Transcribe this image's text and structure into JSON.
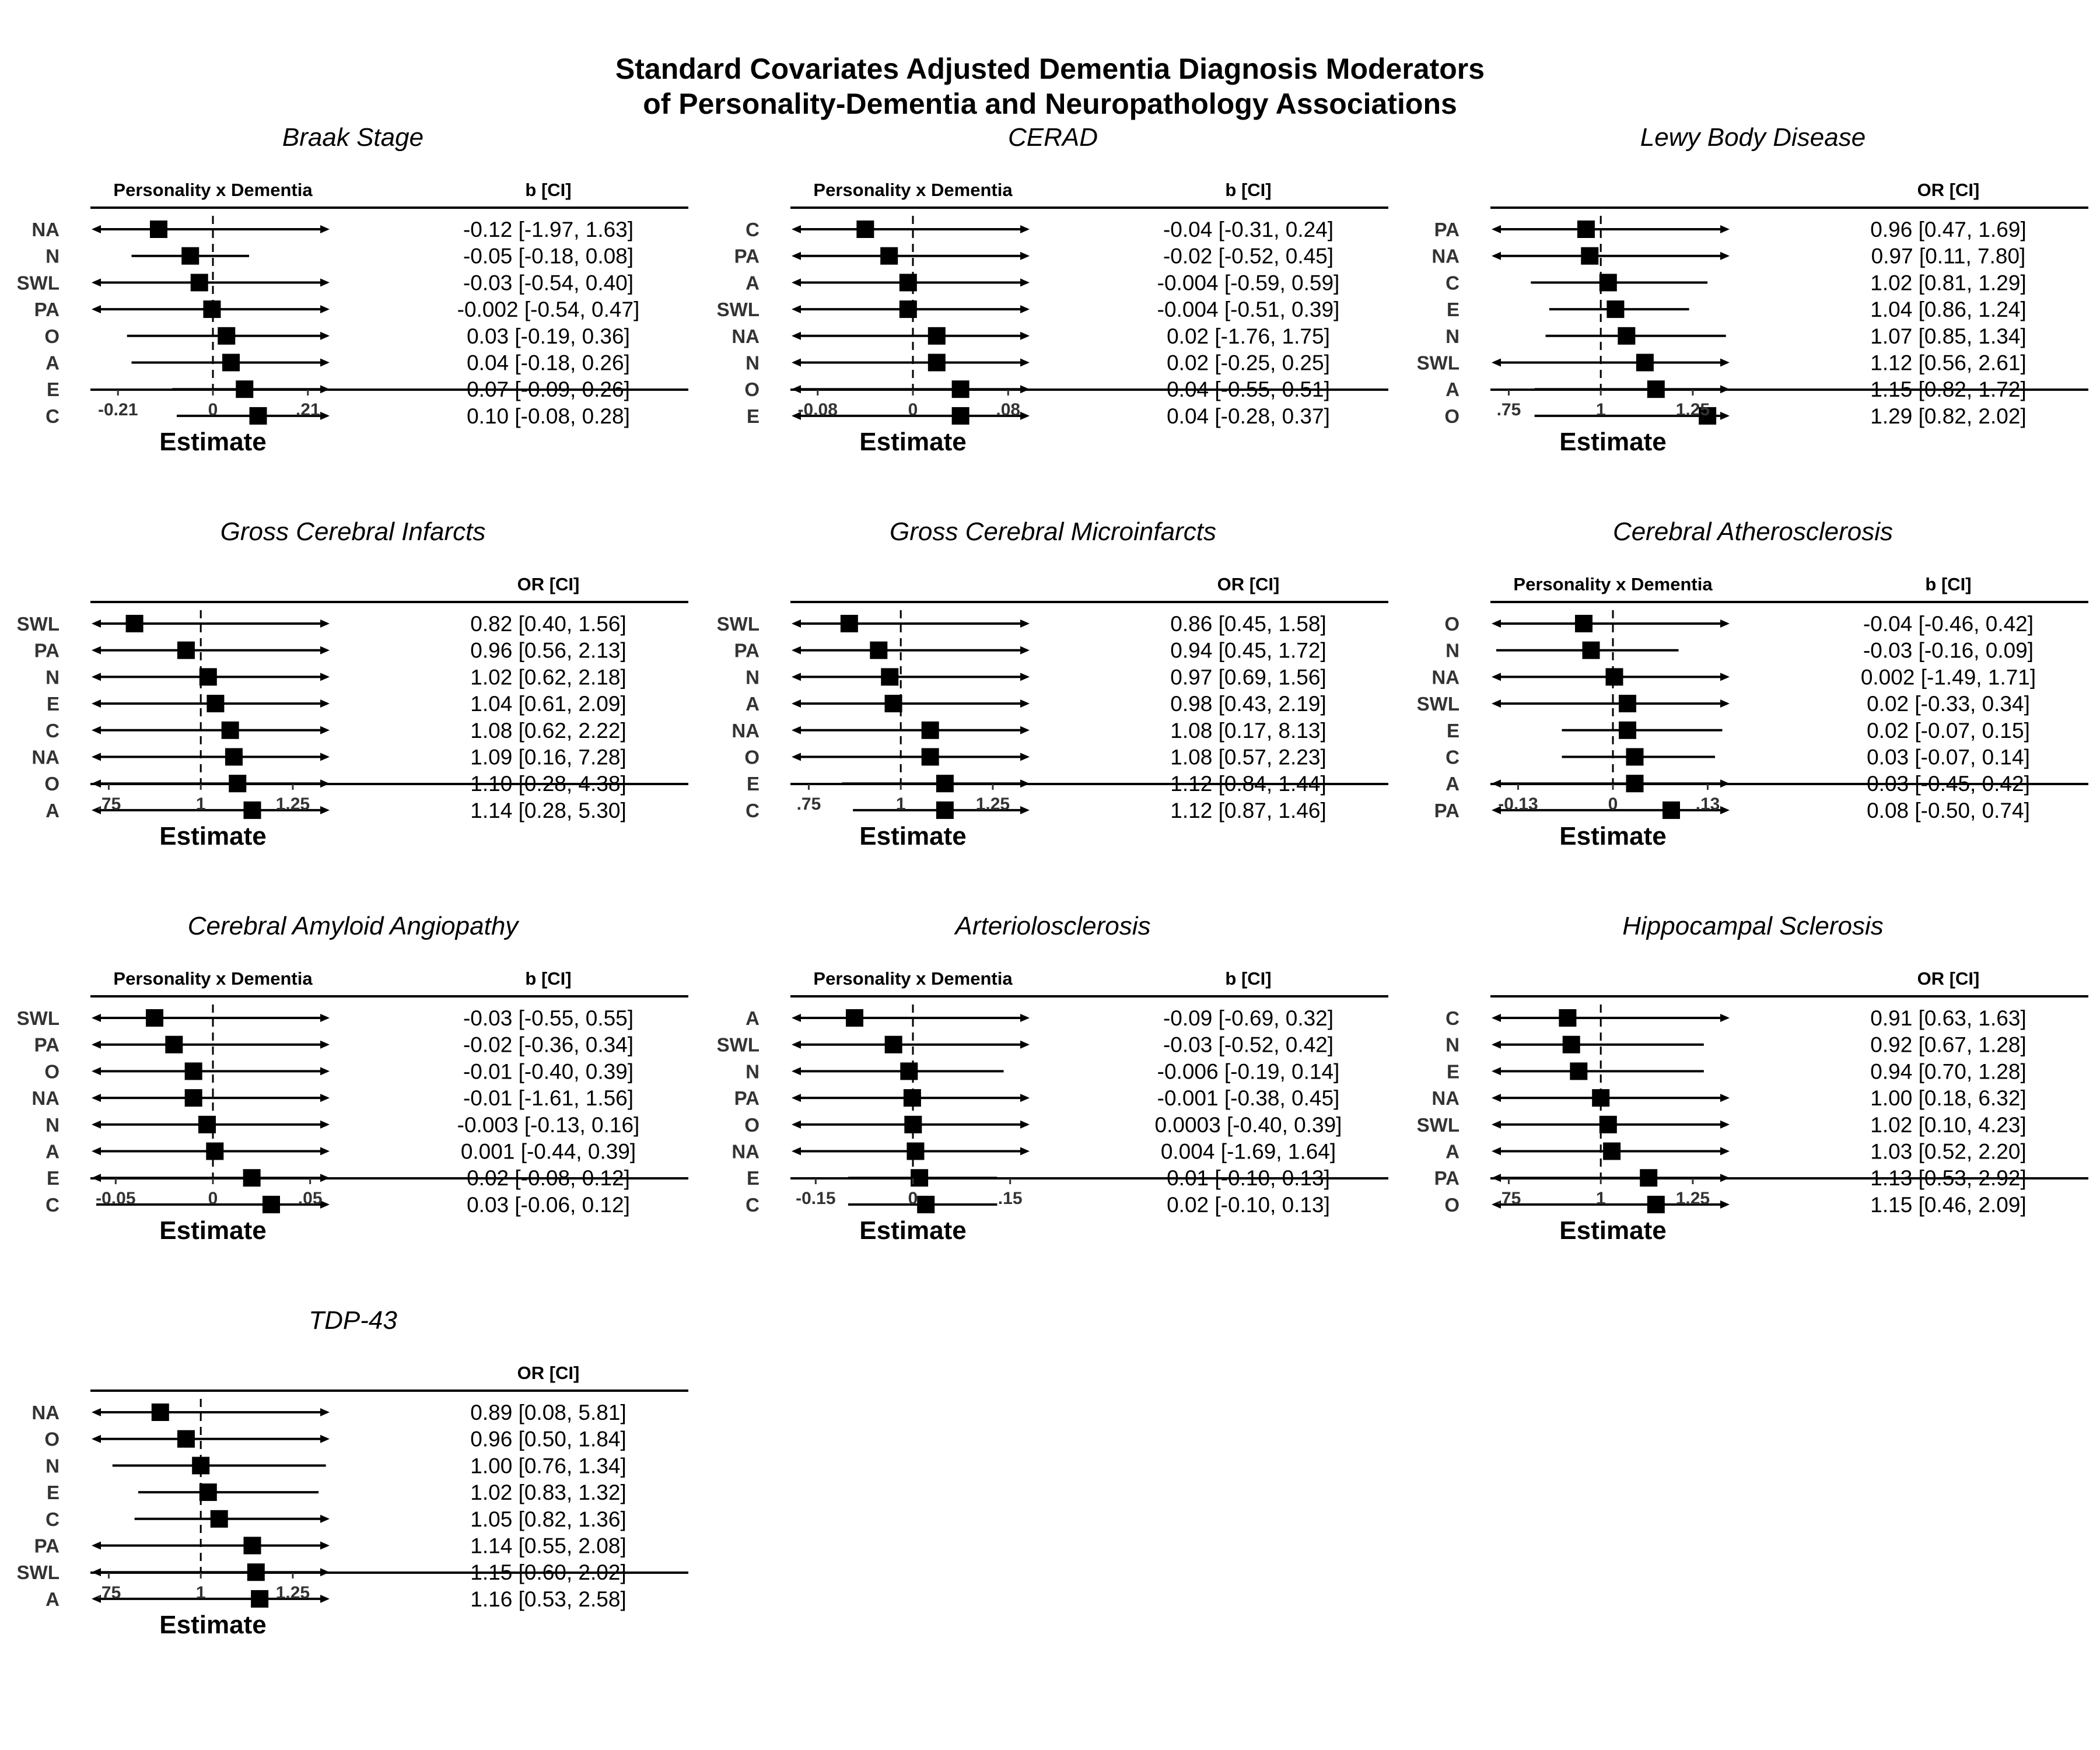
{
  "title": [
    "Standard Covariates Adjusted Dementia Diagnosis Moderators",
    "of Personality-Dementia and Neuropathology Associations"
  ],
  "chart_data": [
    {
      "type": "forest",
      "title": "Braak Stage",
      "column_left": "Personality x Dementia",
      "column_right": "b [CI]",
      "xlabel": "Estimate",
      "ref": 0,
      "ticks": [
        {
          "v": -0.21,
          "label": "-0.21"
        },
        {
          "v": 0,
          "label": "0"
        },
        {
          "v": 0.21,
          "label": ".21"
        }
      ],
      "xlim": [
        -0.258,
        0.258
      ],
      "rows": [
        {
          "label": "NA",
          "est": -0.12,
          "lo": -1.97,
          "hi": 1.63,
          "text": "-0.12 [-1.97, 1.63]"
        },
        {
          "label": "N",
          "est": -0.05,
          "lo": -0.18,
          "hi": 0.08,
          "text": "-0.05 [-0.18, 0.08]"
        },
        {
          "label": "SWL",
          "est": -0.03,
          "lo": -0.54,
          "hi": 0.4,
          "text": "-0.03 [-0.54, 0.40]"
        },
        {
          "label": "PA",
          "est": -0.002,
          "lo": -0.54,
          "hi": 0.47,
          "text": "-0.002 [-0.54, 0.47]"
        },
        {
          "label": "O",
          "est": 0.03,
          "lo": -0.19,
          "hi": 0.36,
          "text": "0.03 [-0.19, 0.36]"
        },
        {
          "label": "A",
          "est": 0.04,
          "lo": -0.18,
          "hi": 0.26,
          "text": "0.04 [-0.18, 0.26]"
        },
        {
          "label": "E",
          "est": 0.07,
          "lo": -0.09,
          "hi": 0.26,
          "text": "0.07 [-0.09, 0.26]"
        },
        {
          "label": "C",
          "est": 0.1,
          "lo": -0.08,
          "hi": 0.28,
          "text": "0.10 [-0.08, 0.28]"
        }
      ]
    },
    {
      "type": "forest",
      "title": "CERAD",
      "column_left": "Personality x Dementia",
      "column_right": "b [CI]",
      "xlabel": "Estimate",
      "ref": 0,
      "ticks": [
        {
          "v": -0.08,
          "label": "-0.08"
        },
        {
          "v": 0,
          "label": "0"
        },
        {
          "v": 0.08,
          "label": ".08"
        }
      ],
      "xlim": [
        -0.098,
        0.098
      ],
      "rows": [
        {
          "label": "C",
          "est": -0.04,
          "lo": -0.31,
          "hi": 0.24,
          "text": "-0.04 [-0.31, 0.24]"
        },
        {
          "label": "PA",
          "est": -0.02,
          "lo": -0.52,
          "hi": 0.45,
          "text": "-0.02 [-0.52, 0.45]"
        },
        {
          "label": "A",
          "est": -0.004,
          "lo": -0.59,
          "hi": 0.59,
          "text": "-0.004 [-0.59, 0.59]"
        },
        {
          "label": "SWL",
          "est": -0.004,
          "lo": -0.51,
          "hi": 0.39,
          "text": "-0.004 [-0.51, 0.39]"
        },
        {
          "label": "NA",
          "est": 0.02,
          "lo": -1.76,
          "hi": 1.75,
          "text": "0.02 [-1.76, 1.75]"
        },
        {
          "label": "N",
          "est": 0.02,
          "lo": -0.25,
          "hi": 0.25,
          "text": "0.02 [-0.25, 0.25]"
        },
        {
          "label": "O",
          "est": 0.04,
          "lo": -0.55,
          "hi": 0.51,
          "text": "0.04 [-0.55, 0.51]"
        },
        {
          "label": "E",
          "est": 0.04,
          "lo": -0.28,
          "hi": 0.37,
          "text": "0.04 [-0.28, 0.37]"
        }
      ]
    },
    {
      "type": "forest",
      "title": "Lewy Body Disease",
      "column_left": "",
      "column_right": "OR [CI]",
      "xlabel": "Estimate",
      "ref": 1,
      "ticks": [
        {
          "v": 0.75,
          "label": ".75"
        },
        {
          "v": 1,
          "label": "1"
        },
        {
          "v": 1.25,
          "label": "1.25"
        }
      ],
      "xlim": [
        0.716,
        1.35
      ],
      "rows": [
        {
          "label": "PA",
          "est": 0.96,
          "lo": 0.47,
          "hi": 1.69,
          "text": "0.96 [0.47, 1.69]"
        },
        {
          "label": "NA",
          "est": 0.97,
          "lo": 0.11,
          "hi": 7.8,
          "text": "0.97 [0.11, 7.80]"
        },
        {
          "label": "C",
          "est": 1.02,
          "lo": 0.81,
          "hi": 1.29,
          "text": "1.02 [0.81, 1.29]"
        },
        {
          "label": "E",
          "est": 1.04,
          "lo": 0.86,
          "hi": 1.24,
          "text": "1.04 [0.86, 1.24]"
        },
        {
          "label": "N",
          "est": 1.07,
          "lo": 0.85,
          "hi": 1.34,
          "text": "1.07 [0.85, 1.34]"
        },
        {
          "label": "SWL",
          "est": 1.12,
          "lo": 0.56,
          "hi": 2.61,
          "text": "1.12 [0.56, 2.61]"
        },
        {
          "label": "A",
          "est": 1.15,
          "lo": 0.82,
          "hi": 1.72,
          "text": "1.15 [0.82, 1.72]"
        },
        {
          "label": "O",
          "est": 1.29,
          "lo": 0.82,
          "hi": 2.02,
          "text": "1.29 [0.82, 2.02]"
        }
      ]
    },
    {
      "type": "forest",
      "title": "Gross Cerebral Infarcts",
      "column_left": "",
      "column_right": "OR [CI]",
      "xlabel": "Estimate",
      "ref": 1,
      "ticks": [
        {
          "v": 0.75,
          "label": ".75"
        },
        {
          "v": 1,
          "label": "1"
        },
        {
          "v": 1.25,
          "label": "1.25"
        }
      ],
      "xlim": [
        0.716,
        1.35
      ],
      "rows": [
        {
          "label": "SWL",
          "est": 0.82,
          "lo": 0.4,
          "hi": 1.56,
          "text": "0.82 [0.40, 1.56]"
        },
        {
          "label": "PA",
          "est": 0.96,
          "lo": 0.56,
          "hi": 2.13,
          "text": "0.96 [0.56, 2.13]"
        },
        {
          "label": "N",
          "est": 1.02,
          "lo": 0.62,
          "hi": 2.18,
          "text": "1.02 [0.62, 2.18]"
        },
        {
          "label": "E",
          "est": 1.04,
          "lo": 0.61,
          "hi": 2.09,
          "text": "1.04 [0.61, 2.09]"
        },
        {
          "label": "C",
          "est": 1.08,
          "lo": 0.62,
          "hi": 2.22,
          "text": "1.08 [0.62, 2.22]"
        },
        {
          "label": "NA",
          "est": 1.09,
          "lo": 0.16,
          "hi": 7.28,
          "text": "1.09 [0.16, 7.28]"
        },
        {
          "label": "O",
          "est": 1.1,
          "lo": 0.28,
          "hi": 4.38,
          "text": "1.10 [0.28, 4.38]"
        },
        {
          "label": "A",
          "est": 1.14,
          "lo": 0.28,
          "hi": 5.3,
          "text": "1.14 [0.28, 5.30]"
        }
      ]
    },
    {
      "type": "forest",
      "title": "Gross Cerebral Microinfarcts",
      "column_left": "",
      "column_right": "OR [CI]",
      "xlabel": "Estimate",
      "ref": 1,
      "ticks": [
        {
          "v": 0.75,
          "label": ".75"
        },
        {
          "v": 1,
          "label": "1"
        },
        {
          "v": 1.25,
          "label": "1.25"
        }
      ],
      "xlim": [
        0.716,
        1.35
      ],
      "rows": [
        {
          "label": "SWL",
          "est": 0.86,
          "lo": 0.45,
          "hi": 1.58,
          "text": "0.86 [0.45, 1.58]"
        },
        {
          "label": "PA",
          "est": 0.94,
          "lo": 0.45,
          "hi": 1.72,
          "text": "0.94 [0.45, 1.72]"
        },
        {
          "label": "N",
          "est": 0.97,
          "lo": 0.69,
          "hi": 1.56,
          "text": "0.97 [0.69, 1.56]"
        },
        {
          "label": "A",
          "est": 0.98,
          "lo": 0.43,
          "hi": 2.19,
          "text": "0.98 [0.43, 2.19]"
        },
        {
          "label": "NA",
          "est": 1.08,
          "lo": 0.17,
          "hi": 8.13,
          "text": "1.08 [0.17, 8.13]"
        },
        {
          "label": "O",
          "est": 1.08,
          "lo": 0.57,
          "hi": 2.23,
          "text": "1.08 [0.57, 2.23]"
        },
        {
          "label": "E",
          "est": 1.12,
          "lo": 0.84,
          "hi": 1.44,
          "text": "1.12 [0.84, 1.44]"
        },
        {
          "label": "C",
          "est": 1.12,
          "lo": 0.87,
          "hi": 1.46,
          "text": "1.12 [0.87, 1.46]"
        }
      ]
    },
    {
      "type": "forest",
      "title": "Cerebral Atherosclerosis",
      "column_left": "Personality x Dementia",
      "column_right": "b [CI]",
      "xlabel": "Estimate",
      "ref": 0,
      "ticks": [
        {
          "v": -0.13,
          "label": "-0.13"
        },
        {
          "v": 0,
          "label": "0"
        },
        {
          "v": 0.13,
          "label": ".13"
        }
      ],
      "xlim": [
        -0.16,
        0.16
      ],
      "rows": [
        {
          "label": "O",
          "est": -0.04,
          "lo": -0.46,
          "hi": 0.42,
          "text": "-0.04 [-0.46, 0.42]"
        },
        {
          "label": "N",
          "est": -0.03,
          "lo": -0.16,
          "hi": 0.09,
          "text": "-0.03 [-0.16, 0.09]"
        },
        {
          "label": "NA",
          "est": 0.002,
          "lo": -1.49,
          "hi": 1.71,
          "text": "0.002 [-1.49, 1.71]"
        },
        {
          "label": "SWL",
          "est": 0.02,
          "lo": -0.33,
          "hi": 0.34,
          "text": "0.02 [-0.33, 0.34]"
        },
        {
          "label": "E",
          "est": 0.02,
          "lo": -0.07,
          "hi": 0.15,
          "text": "0.02 [-0.07, 0.15]"
        },
        {
          "label": "C",
          "est": 0.03,
          "lo": -0.07,
          "hi": 0.14,
          "text": "0.03 [-0.07, 0.14]"
        },
        {
          "label": "A",
          "est": 0.03,
          "lo": -0.45,
          "hi": 0.42,
          "text": "0.03 [-0.45, 0.42]"
        },
        {
          "label": "PA",
          "est": 0.08,
          "lo": -0.5,
          "hi": 0.74,
          "text": "0.08 [-0.50, 0.74]"
        }
      ]
    },
    {
      "type": "forest",
      "title": "Cerebral Amyloid Angiopathy",
      "column_left": "Personality x Dementia",
      "column_right": "b [CI]",
      "xlabel": "Estimate",
      "ref": 0,
      "ticks": [
        {
          "v": -0.05,
          "label": "-0.05"
        },
        {
          "v": 0,
          "label": "0"
        },
        {
          "v": 0.05,
          "label": ".05"
        }
      ],
      "xlim": [
        -0.06,
        0.06
      ],
      "rows": [
        {
          "label": "SWL",
          "est": -0.03,
          "lo": -0.55,
          "hi": 0.55,
          "text": "-0.03 [-0.55, 0.55]"
        },
        {
          "label": "PA",
          "est": -0.02,
          "lo": -0.36,
          "hi": 0.34,
          "text": "-0.02 [-0.36, 0.34]"
        },
        {
          "label": "O",
          "est": -0.01,
          "lo": -0.4,
          "hi": 0.39,
          "text": "-0.01 [-0.40, 0.39]"
        },
        {
          "label": "NA",
          "est": -0.01,
          "lo": -1.61,
          "hi": 1.56,
          "text": "-0.01 [-1.61, 1.56]"
        },
        {
          "label": "N",
          "est": -0.003,
          "lo": -0.13,
          "hi": 0.16,
          "text": "-0.003 [-0.13, 0.16]"
        },
        {
          "label": "A",
          "est": 0.001,
          "lo": -0.44,
          "hi": 0.39,
          "text": "0.001 [-0.44, 0.39]"
        },
        {
          "label": "E",
          "est": 0.02,
          "lo": -0.08,
          "hi": 0.12,
          "text": "0.02 [-0.08, 0.12]"
        },
        {
          "label": "C",
          "est": 0.03,
          "lo": -0.06,
          "hi": 0.12,
          "text": "0.03 [-0.06, 0.12]"
        }
      ]
    },
    {
      "type": "forest",
      "title": "Arteriolosclerosis",
      "column_left": "Personality x Dementia",
      "column_right": "b [CI]",
      "xlabel": "Estimate",
      "ref": 0,
      "ticks": [
        {
          "v": -0.15,
          "label": "-0.15"
        },
        {
          "v": 0,
          "label": "0"
        },
        {
          "v": 0.15,
          "label": ".15"
        }
      ],
      "xlim": [
        -0.18,
        0.18
      ],
      "rows": [
        {
          "label": "A",
          "est": -0.09,
          "lo": -0.69,
          "hi": 0.32,
          "text": "-0.09 [-0.69, 0.32]"
        },
        {
          "label": "SWL",
          "est": -0.03,
          "lo": -0.52,
          "hi": 0.42,
          "text": "-0.03 [-0.52, 0.42]"
        },
        {
          "label": "N",
          "est": -0.006,
          "lo": -0.19,
          "hi": 0.14,
          "text": "-0.006 [-0.19, 0.14]"
        },
        {
          "label": "PA",
          "est": -0.001,
          "lo": -0.38,
          "hi": 0.45,
          "text": "-0.001 [-0.38, 0.45]"
        },
        {
          "label": "O",
          "est": 0.0003,
          "lo": -0.4,
          "hi": 0.39,
          "text": "0.0003 [-0.40, 0.39]"
        },
        {
          "label": "NA",
          "est": 0.004,
          "lo": -1.69,
          "hi": 1.64,
          "text": "0.004 [-1.69, 1.64]"
        },
        {
          "label": "E",
          "est": 0.01,
          "lo": -0.1,
          "hi": 0.13,
          "text": "0.01 [-0.10, 0.13]"
        },
        {
          "label": "C",
          "est": 0.02,
          "lo": -0.1,
          "hi": 0.13,
          "text": "0.02 [-0.10, 0.13]"
        }
      ]
    },
    {
      "type": "forest",
      "title": "Hippocampal Sclerosis",
      "column_left": "",
      "column_right": "OR [CI]",
      "xlabel": "Estimate",
      "ref": 1,
      "ticks": [
        {
          "v": 0.75,
          "label": ".75"
        },
        {
          "v": 1,
          "label": "1"
        },
        {
          "v": 1.25,
          "label": "1.25"
        }
      ],
      "xlim": [
        0.716,
        1.35
      ],
      "rows": [
        {
          "label": "C",
          "est": 0.91,
          "lo": 0.63,
          "hi": 1.63,
          "text": "0.91 [0.63, 1.63]"
        },
        {
          "label": "N",
          "est": 0.92,
          "lo": 0.67,
          "hi": 1.28,
          "text": "0.92 [0.67, 1.28]"
        },
        {
          "label": "E",
          "est": 0.94,
          "lo": 0.7,
          "hi": 1.28,
          "text": "0.94 [0.70, 1.28]"
        },
        {
          "label": "NA",
          "est": 1.0,
          "lo": 0.18,
          "hi": 6.32,
          "text": "1.00 [0.18, 6.32]"
        },
        {
          "label": "SWL",
          "est": 1.02,
          "lo": 0.1,
          "hi": 4.23,
          "text": "1.02 [0.10, 4.23]"
        },
        {
          "label": "A",
          "est": 1.03,
          "lo": 0.52,
          "hi": 2.2,
          "text": "1.03 [0.52, 2.20]"
        },
        {
          "label": "PA",
          "est": 1.13,
          "lo": 0.53,
          "hi": 2.92,
          "text": "1.13 [0.53, 2.92]"
        },
        {
          "label": "O",
          "est": 1.15,
          "lo": 0.46,
          "hi": 2.09,
          "text": "1.15 [0.46, 2.09]"
        }
      ]
    },
    {
      "type": "forest",
      "title": "TDP-43",
      "column_left": "",
      "column_right": "OR [CI]",
      "xlabel": "Estimate",
      "ref": 1,
      "ticks": [
        {
          "v": 0.75,
          "label": ".75"
        },
        {
          "v": 1,
          "label": "1"
        },
        {
          "v": 1.25,
          "label": "1.25"
        }
      ],
      "xlim": [
        0.716,
        1.35
      ],
      "rows": [
        {
          "label": "NA",
          "est": 0.89,
          "lo": 0.08,
          "hi": 5.81,
          "text": "0.89 [0.08, 5.81]"
        },
        {
          "label": "O",
          "est": 0.96,
          "lo": 0.5,
          "hi": 1.84,
          "text": "0.96 [0.50, 1.84]"
        },
        {
          "label": "N",
          "est": 1.0,
          "lo": 0.76,
          "hi": 1.34,
          "text": "1.00 [0.76, 1.34]"
        },
        {
          "label": "E",
          "est": 1.02,
          "lo": 0.83,
          "hi": 1.32,
          "text": "1.02 [0.83, 1.32]"
        },
        {
          "label": "C",
          "est": 1.05,
          "lo": 0.82,
          "hi": 1.36,
          "text": "1.05 [0.82, 1.36]"
        },
        {
          "label": "PA",
          "est": 1.14,
          "lo": 0.55,
          "hi": 2.08,
          "text": "1.14 [0.55, 2.08]"
        },
        {
          "label": "SWL",
          "est": 1.15,
          "lo": 0.6,
          "hi": 2.02,
          "text": "1.15 [0.60, 2.02]"
        },
        {
          "label": "A",
          "est": 1.16,
          "lo": 0.53,
          "hi": 2.58,
          "text": "1.16 [0.53, 2.58]"
        }
      ]
    }
  ]
}
